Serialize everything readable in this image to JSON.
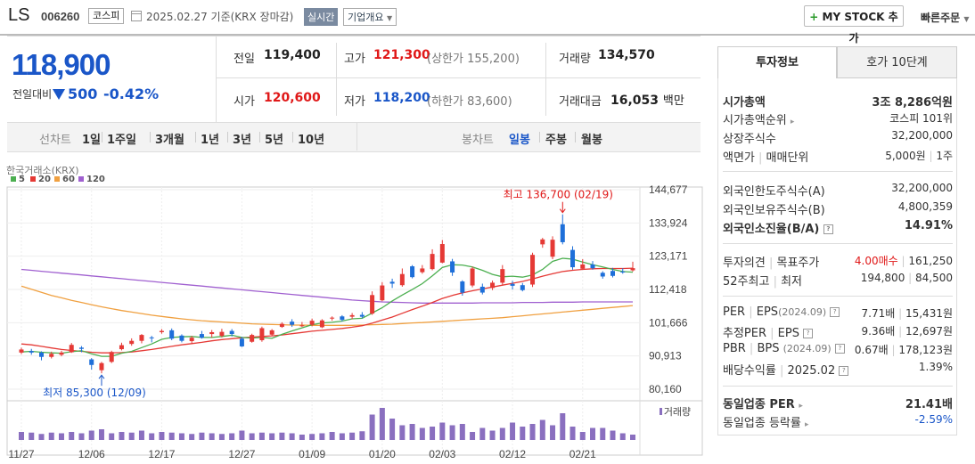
{
  "header": {
    "stock_name": "LS",
    "stock_code": "006260",
    "market": "코스피",
    "date": "2025.02.27",
    "basis": "기준(KRX 장마감)",
    "realtime": "실시간",
    "overview": "기업개요",
    "mystock_label": "MY STOCK 추가",
    "quick_order": "빠른주문"
  },
  "price": {
    "current": "118,900",
    "change_label": "전일대비",
    "change": "500",
    "change_pct": "-0.42%",
    "direction": "down"
  },
  "summary": {
    "prev_label": "전일",
    "prev": "119,400",
    "high_label": "고가",
    "high": "121,300",
    "upper_limit": "(상한가 155,200)",
    "volume_label": "거래량",
    "volume": "134,570",
    "open_label": "시가",
    "open": "120,600",
    "low_label": "저가",
    "low": "118,200",
    "lower_limit": "(하한가 83,600)",
    "amount_label": "거래대금",
    "amount": "16,053",
    "amount_unit": "백만"
  },
  "toolbar": {
    "line_label": "선차트",
    "line_periods": [
      "1일",
      "1주일",
      "3개월",
      "1년",
      "3년",
      "5년",
      "10년"
    ],
    "candle_label": "봉차트",
    "candle_periods": [
      "일봉",
      "주봉",
      "월봉"
    ],
    "candle_active": "일봉"
  },
  "chart_data": {
    "type": "candlestick",
    "source_label": "한국거래소(KRX)",
    "legend": [
      {
        "name": "5",
        "color": "#4caf50"
      },
      {
        "name": "20",
        "color": "#e53935"
      },
      {
        "name": "60",
        "color": "#f0a040"
      },
      {
        "name": "120",
        "color": "#a060d0"
      }
    ],
    "y_ticks": [
      "144,677",
      "133,924",
      "123,171",
      "112,418",
      "101,666",
      "90,913",
      "80,160"
    ],
    "ylim": [
      80160,
      144677
    ],
    "x_ticks": [
      {
        "label": "11/27",
        "index": 0
      },
      {
        "label": "12/06",
        "index": 7
      },
      {
        "label": "12/17",
        "index": 14
      },
      {
        "label": "12/27",
        "index": 22
      },
      {
        "label": "01/09",
        "index": 29
      },
      {
        "label": "01/20",
        "index": 36
      },
      {
        "label": "02/03",
        "index": 42
      },
      {
        "label": "02/12",
        "index": 49
      },
      {
        "label": "02/21",
        "index": 56
      }
    ],
    "high_annotation": {
      "text": "최고 136,700 (02/19)",
      "index": 54,
      "value": 136700
    },
    "low_annotation": {
      "text": "최저 85,300 (12/09)",
      "index": 8,
      "value": 85300
    },
    "volume_label": "거래량",
    "candles": [
      [
        92000,
        93000,
        91500,
        93600
      ],
      [
        92500,
        92000,
        91300,
        93200
      ],
      [
        92000,
        90600,
        89500,
        92400
      ],
      [
        90600,
        91600,
        90100,
        92300
      ],
      [
        91300,
        92000,
        90800,
        92600
      ],
      [
        92100,
        94500,
        91900,
        95100
      ],
      [
        93600,
        93200,
        92100,
        94100
      ],
      [
        89800,
        88000,
        86500,
        90200
      ],
      [
        86300,
        88600,
        85300,
        89000
      ],
      [
        89000,
        92200,
        88600,
        92600
      ],
      [
        93100,
        94400,
        92700,
        95200
      ],
      [
        94800,
        95800,
        94200,
        96600
      ],
      [
        95800,
        97700,
        95000,
        98000
      ],
      [
        96900,
        96700,
        95300,
        97400
      ],
      [
        98600,
        99000,
        98100,
        99600
      ],
      [
        99200,
        96500,
        96000,
        99800
      ],
      [
        97500,
        95800,
        95300,
        97900
      ],
      [
        95700,
        96800,
        95000,
        97400
      ],
      [
        98000,
        96800,
        96500,
        99000
      ],
      [
        98000,
        98600,
        96800,
        99300
      ],
      [
        97400,
        98700,
        96900,
        99700
      ],
      [
        99000,
        98000,
        97200,
        99600
      ],
      [
        96500,
        94000,
        93800,
        97100
      ],
      [
        95500,
        97700,
        95200,
        98100
      ],
      [
        96000,
        99900,
        95500,
        100400
      ],
      [
        97800,
        99200,
        97300,
        99600
      ],
      [
        100300,
        101300,
        100000,
        101800
      ],
      [
        102000,
        101000,
        100300,
        102800
      ],
      [
        100800,
        100800,
        100300,
        101900
      ],
      [
        101000,
        102300,
        100500,
        103000
      ],
      [
        100200,
        102400,
        99900,
        102800
      ],
      [
        103000,
        103300,
        102300,
        103700
      ],
      [
        103700,
        102600,
        102100,
        104100
      ],
      [
        103600,
        104100,
        102800,
        104800
      ],
      [
        104200,
        103600,
        103100,
        105100
      ],
      [
        104600,
        110600,
        104200,
        111800
      ],
      [
        108900,
        113700,
        108600,
        114800
      ],
      [
        114900,
        114300,
        112900,
        115900
      ],
      [
        113800,
        117400,
        113300,
        119200
      ],
      [
        119900,
        116400,
        116000,
        120300
      ],
      [
        118000,
        119200,
        117500,
        120300
      ],
      [
        119000,
        123900,
        118600,
        125400
      ],
      [
        121100,
        127100,
        120900,
        128400
      ],
      [
        121500,
        117900,
        116800,
        122300
      ],
      [
        115000,
        111400,
        110400,
        115400
      ],
      [
        113700,
        119200,
        113100,
        119800
      ],
      [
        113300,
        111400,
        110800,
        114300
      ],
      [
        112900,
        114600,
        112200,
        115300
      ],
      [
        114600,
        119000,
        114000,
        120300
      ],
      [
        114200,
        113600,
        112400,
        115200
      ],
      [
        113800,
        112200,
        111800,
        114500
      ],
      [
        114000,
        123600,
        113200,
        124300
      ],
      [
        127000,
        128600,
        125900,
        129100
      ],
      [
        123000,
        128500,
        122200,
        129600
      ],
      [
        133500,
        127700,
        127000,
        136700
      ],
      [
        125200,
        119600,
        118800,
        126400
      ],
      [
        119100,
        120500,
        118800,
        122200
      ],
      [
        120500,
        119300,
        118800,
        121600
      ],
      [
        117800,
        116600,
        115900,
        118300
      ],
      [
        118400,
        116800,
        116300,
        119400
      ],
      [
        118200,
        117900,
        117500,
        119300
      ],
      [
        118600,
        119300,
        118200,
        121400
      ]
    ],
    "ma5": [
      92200,
      92400,
      92100,
      91900,
      91800,
      92300,
      92600,
      91600,
      90800,
      90800,
      91800,
      92400,
      93600,
      94800,
      96300,
      96900,
      97100,
      97200,
      96900,
      96900,
      97200,
      97600,
      96900,
      96700,
      96900,
      96600,
      97900,
      99000,
      100000,
      101000,
      101600,
      101800,
      102200,
      102900,
      103100,
      104800,
      106500,
      108700,
      110600,
      112400,
      114300,
      116800,
      119500,
      120400,
      120300,
      119700,
      118600,
      117300,
      116500,
      116700,
      116400,
      117100,
      118900,
      121500,
      122500,
      122200,
      121300,
      120400,
      119700,
      118900,
      118200,
      118000
    ],
    "ma20": [
      94800,
      94500,
      94000,
      93500,
      93000,
      92700,
      92400,
      92100,
      91900,
      91900,
      92000,
      92200,
      92600,
      93000,
      93500,
      94000,
      94500,
      94900,
      95300,
      95800,
      96200,
      96500,
      96800,
      97000,
      97200,
      97400,
      97700,
      98100,
      98500,
      98900,
      99200,
      99500,
      99800,
      100200,
      100700,
      101500,
      102500,
      103500,
      104700,
      105900,
      107000,
      108200,
      109500,
      110500,
      111300,
      112000,
      112600,
      113200,
      113800,
      114400,
      115000,
      115800,
      116700,
      117500,
      118200,
      118600,
      118900,
      119100,
      119200,
      119200,
      119200,
      119300
    ],
    "ma60": [
      113500,
      112500,
      111500,
      110500,
      109700,
      108900,
      108200,
      107500,
      106800,
      106200,
      105600,
      105100,
      104600,
      104100,
      103700,
      103300,
      102900,
      102600,
      102300,
      102100,
      101900,
      101700,
      101500,
      101300,
      101200,
      101100,
      101000,
      100900,
      100900,
      100800,
      100800,
      100800,
      100800,
      100800,
      100900,
      101000,
      101100,
      101200,
      101400,
      101600,
      101700,
      101900,
      102100,
      102300,
      102500,
      102700,
      102900,
      103100,
      103300,
      103600,
      103900,
      104200,
      104500,
      104800,
      105100,
      105400,
      105700,
      106000,
      106300,
      106600,
      106900,
      107200
    ],
    "ma120": [
      118900,
      118600,
      118300,
      118000,
      117700,
      117400,
      117100,
      116800,
      116500,
      116200,
      115900,
      115600,
      115300,
      115000,
      114700,
      114400,
      114100,
      113800,
      113500,
      113200,
      112900,
      112600,
      112300,
      112000,
      111700,
      111400,
      111100,
      110800,
      110500,
      110200,
      109900,
      109600,
      109300,
      109000,
      108800,
      108600,
      108400,
      108300,
      108200,
      108100,
      108000,
      108000,
      108000,
      108000,
      108000,
      108000,
      108100,
      108100,
      108100,
      108100,
      108200,
      108200,
      108200,
      108300,
      108300,
      108300,
      108400,
      108400,
      108400,
      108400,
      108400,
      108400
    ],
    "volume": [
      12,
      11,
      9,
      11,
      10,
      12,
      10,
      14,
      16,
      10,
      12,
      11,
      14,
      10,
      12,
      11,
      10,
      9,
      11,
      10,
      9,
      10,
      14,
      10,
      11,
      10,
      11,
      10,
      8,
      9,
      10,
      12,
      10,
      11,
      13,
      38,
      48,
      32,
      22,
      24,
      18,
      20,
      26,
      22,
      24,
      12,
      18,
      14,
      18,
      26,
      20,
      24,
      30,
      22,
      40,
      20,
      12,
      18,
      18,
      14,
      10,
      8
    ]
  },
  "right_panel": {
    "tabs": [
      "투자정보",
      "호가 10단계"
    ],
    "market_cap_label": "시가총액",
    "market_cap": "3조 8,286억원",
    "market_cap_rank_label": "시가총액순위",
    "market_cap_rank": "코스피 101위",
    "listed_shares_label": "상장주식수",
    "listed_shares": "32,200,000",
    "par_label1": "액면가",
    "par_label2": "매매단위",
    "par_value": "5,000원",
    "trade_unit": "1주",
    "foreign_limit_label": "외국인한도주식수(A)",
    "foreign_limit": "32,200,000",
    "foreign_hold_label": "외국인보유주식수(B)",
    "foreign_hold": "4,800,359",
    "foreign_ratio_label": "외국인소진율(B/A)",
    "foreign_ratio": "14.91%",
    "opinion_label1": "투자의견",
    "opinion_label2": "목표주가",
    "opinion": "4.00매수",
    "target_price": "161,250",
    "week52_label1": "52주최고",
    "week52_label2": "최저",
    "week52_high": "194,800",
    "week52_low": "84,500",
    "per_label1": "PER",
    "per_label2": "EPS",
    "per_period": "(2024.09)",
    "per": "7.71배",
    "eps": "15,431원",
    "est_per_label1": "추정PER",
    "est_per_label2": "EPS",
    "est_per": "9.36배",
    "est_eps": "12,697원",
    "pbr_label1": "PBR",
    "pbr_label2": "BPS",
    "pbr_period": "(2024.09)",
    "pbr": "0.67배",
    "bps": "178,123원",
    "dividend_label": "배당수익률",
    "dividend_period": "2025.02",
    "dividend": "1.39%",
    "industry_per_label": "동일업종 PER",
    "industry_per": "21.41배",
    "industry_change_label": "동일업종 등락률",
    "industry_change": "-2.59%"
  }
}
